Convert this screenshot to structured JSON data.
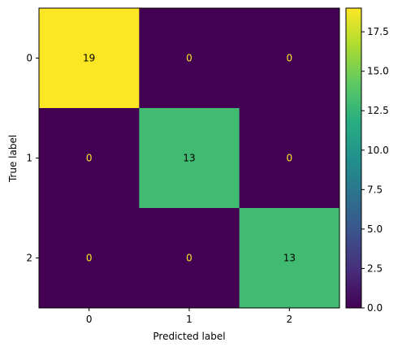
{
  "chart_data": {
    "type": "heatmap",
    "xlabel": "Predicted label",
    "ylabel": "True label",
    "x_ticks": [
      "0",
      "1",
      "2"
    ],
    "y_ticks": [
      "0",
      "1",
      "2"
    ],
    "matrix": [
      [
        19,
        0,
        0
      ],
      [
        0,
        13,
        0
      ],
      [
        0,
        0,
        13
      ]
    ],
    "colormap": "viridis",
    "colorbar": {
      "vmin": 0,
      "vmax": 19,
      "ticks": [
        "0.0",
        "2.5",
        "5.0",
        "7.5",
        "10.0",
        "12.5",
        "15.0",
        "17.5"
      ]
    },
    "grid": false
  },
  "colors": {
    "text_on_dark": "#fde725",
    "text_on_light": "#000000"
  }
}
